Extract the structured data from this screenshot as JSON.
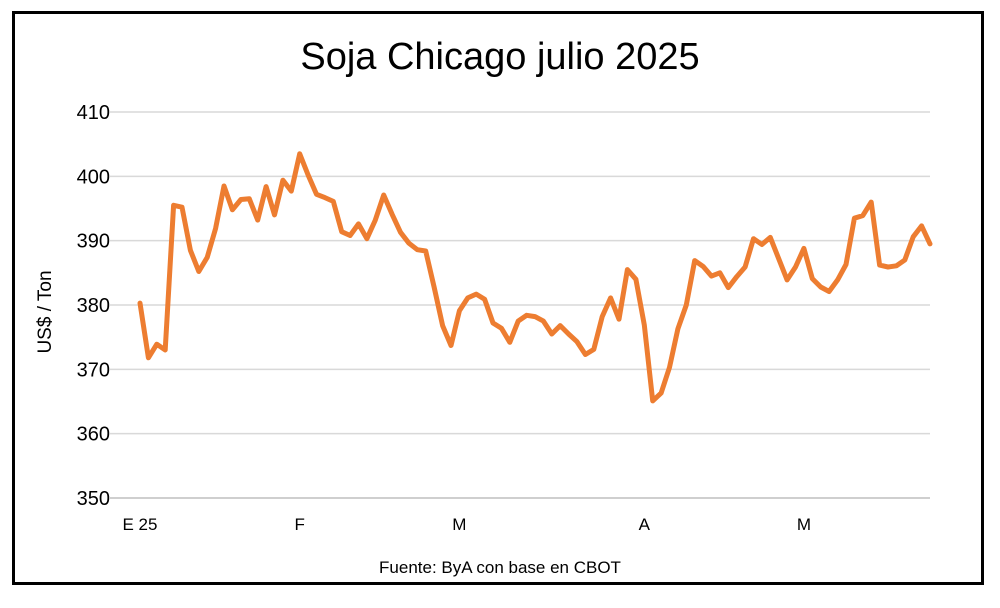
{
  "chart_data": {
    "type": "line",
    "title": "Soja Chicago julio 2025",
    "ylabel": "US$ / Ton",
    "xlabel": "",
    "source": "Fuente: ByA con base en CBOT",
    "ylim": [
      350,
      410
    ],
    "yticks": [
      350,
      360,
      370,
      380,
      390,
      400,
      410
    ],
    "xtick_labels": [
      {
        "label": "E 25",
        "at": 0
      },
      {
        "label": "F",
        "at": 19
      },
      {
        "label": "M",
        "at": 38
      },
      {
        "label": "A",
        "at": 60
      },
      {
        "label": "M",
        "at": 79
      }
    ],
    "grid": true,
    "legend": "none",
    "series": [
      {
        "color": "#ED7D31",
        "values": [
          380.3,
          371.8,
          373.9,
          373.0,
          395.5,
          395.2,
          388.5,
          385.2,
          387.4,
          391.9,
          398.5,
          394.8,
          396.4,
          396.5,
          393.2,
          398.4,
          394.0,
          399.4,
          397.7,
          403.5,
          400.2,
          397.2,
          396.7,
          396.1,
          391.4,
          390.8,
          392.6,
          390.3,
          393.2,
          397.1,
          394.1,
          391.3,
          389.6,
          388.6,
          388.4,
          382.8,
          376.8,
          373.7,
          379.1,
          381.1,
          381.7,
          380.9,
          377.2,
          376.4,
          374.2,
          377.5,
          378.4,
          378.2,
          377.5,
          375.5,
          376.8,
          375.5,
          374.3,
          372.3,
          373.1,
          378.2,
          381.1,
          377.8,
          385.5,
          384.0,
          376.9,
          365.1,
          366.3,
          370.3,
          376.3,
          380.0,
          386.9,
          386.0,
          384.5,
          385.0,
          382.7,
          384.4,
          385.9,
          390.3,
          389.4,
          390.5,
          387.2,
          383.9,
          385.9,
          388.8,
          384.1,
          382.8,
          382.1,
          383.9,
          386.3,
          393.5,
          393.9,
          396.0,
          386.2,
          385.9,
          386.1,
          387.0,
          390.6,
          392.3,
          389.5
        ]
      }
    ]
  }
}
